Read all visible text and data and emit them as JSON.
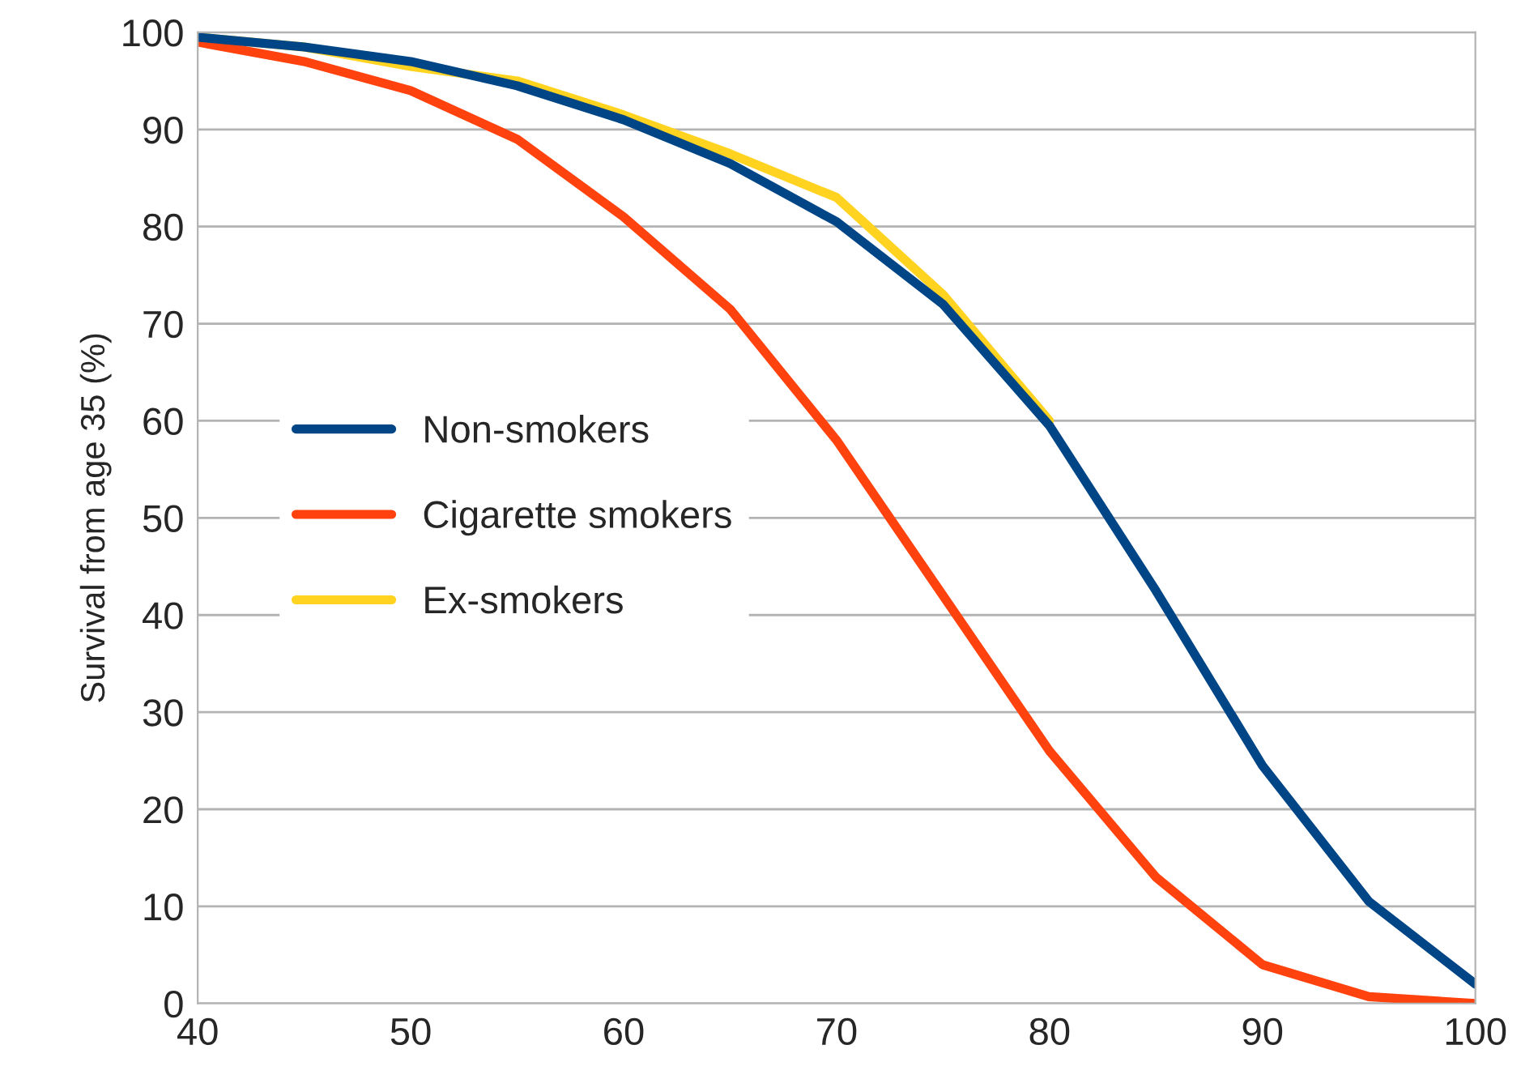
{
  "chart_data": {
    "type": "line",
    "ylabel": "Survival from age 35 (%)",
    "x": [
      40,
      45,
      50,
      55,
      60,
      65,
      70,
      75,
      80,
      85,
      90,
      95,
      100
    ],
    "series": [
      {
        "name": "Non-smokers",
        "color": "#004586",
        "values": [
          99.5,
          98.5,
          97,
          94.5,
          91,
          86.5,
          80.5,
          72,
          59.5,
          42.5,
          24.5,
          10.5,
          2
        ]
      },
      {
        "name": "Cigarette smokers",
        "color": "#ff420e",
        "values": [
          99,
          97,
          94,
          89,
          81,
          71.5,
          58,
          42,
          26,
          13,
          4,
          0.7,
          0
        ]
      },
      {
        "name": "Ex-smokers",
        "color": "#ffd320",
        "values": [
          99.5,
          98.5,
          96.5,
          95,
          91.5,
          87.5,
          83,
          73,
          60,
          null,
          null,
          null,
          null
        ]
      }
    ],
    "xlim": [
      40,
      100
    ],
    "xticks": [
      40,
      50,
      60,
      70,
      80,
      90,
      100
    ],
    "ylim": [
      0,
      100
    ],
    "yticks": [
      0,
      10,
      20,
      30,
      40,
      50,
      60,
      70,
      80,
      90,
      100
    ],
    "grid": "y",
    "legend": "left",
    "marker": "none",
    "line_style": "solid"
  }
}
